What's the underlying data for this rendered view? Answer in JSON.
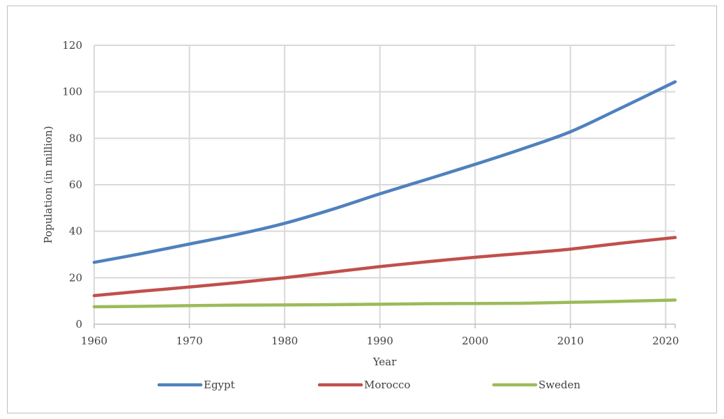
{
  "chart_data": {
    "type": "line",
    "title": "",
    "xlabel": "Year",
    "ylabel": "Population (in million)",
    "xlim": [
      1960,
      2021
    ],
    "ylim": [
      0,
      120
    ],
    "x_ticks": [
      1960,
      1970,
      1980,
      1990,
      2000,
      2010,
      2020
    ],
    "y_ticks": [
      0,
      20,
      40,
      60,
      80,
      100,
      120
    ],
    "grid": true,
    "legend_position": "bottom",
    "x": [
      1960,
      1965,
      1970,
      1975,
      1980,
      1985,
      1990,
      1995,
      2000,
      2005,
      2010,
      2015,
      2021
    ],
    "series": [
      {
        "name": "Egypt",
        "color": "#4f81bd",
        "values": [
          26.6,
          30.4,
          34.5,
          38.6,
          43.4,
          49.4,
          56.1,
          62.4,
          68.8,
          75.5,
          82.8,
          92.4,
          104.3
        ]
      },
      {
        "name": "Morocco",
        "color": "#c0504d",
        "values": [
          12.3,
          14.2,
          16.0,
          17.9,
          20.0,
          22.4,
          24.8,
          26.9,
          28.8,
          30.5,
          32.3,
          34.7,
          37.3
        ]
      },
      {
        "name": "Sweden",
        "color": "#9bbb59",
        "values": [
          7.5,
          7.7,
          8.0,
          8.2,
          8.3,
          8.4,
          8.6,
          8.8,
          8.9,
          9.0,
          9.4,
          9.8,
          10.4
        ]
      }
    ]
  }
}
